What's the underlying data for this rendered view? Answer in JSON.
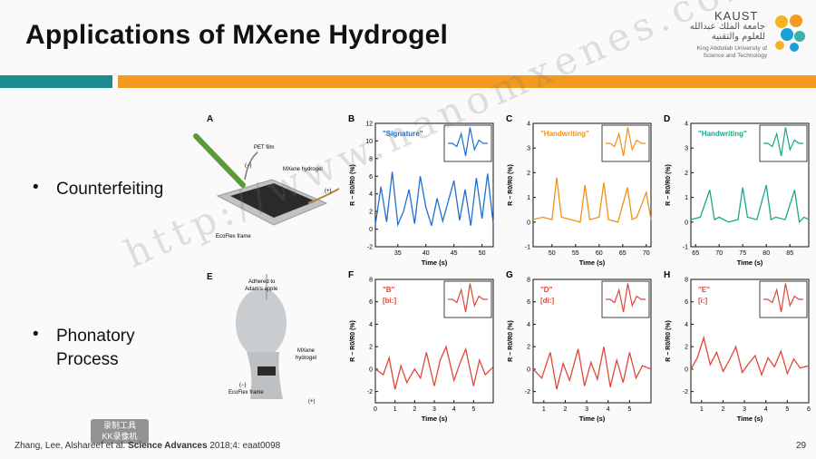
{
  "slide": {
    "title": "Applications of MXene Hydrogel",
    "page_number": "29",
    "citation_authors": "Zhang, Lee, Alshareef et al.",
    "citation_journal": "Science Advances",
    "citation_rest": "2018;4: eaat0098"
  },
  "logo": {
    "name": "KAUST",
    "arabic": "جامعة الملك عبدالله للعلوم والتقنية",
    "english": "King Abdullah University of Science and Technology"
  },
  "colors": {
    "teal": "#1c8a8f",
    "orange": "#f39a1f",
    "blue": "#1f6fd1",
    "orange_trace": "#f0901c",
    "green": "#1aa889",
    "red": "#e0463a"
  },
  "bullets": [
    {
      "symbol": "•",
      "text": "Counterfeiting"
    },
    {
      "symbol": "•",
      "text": "Phonatory"
    },
    {
      "symbol": "",
      "text": "Process"
    }
  ],
  "figure_A": {
    "letter": "A",
    "labels": [
      "PET film",
      "(−)",
      "MXene hydrogel",
      "(+)",
      "EcoFlex frame"
    ]
  },
  "figure_E": {
    "letter": "E",
    "labels": [
      "Adhered to",
      "Adam's apple",
      "MXene",
      "hydrogel",
      "(−)",
      "EcoFlex frame",
      "(+)"
    ]
  },
  "watermark": "http://www.nanomxenes.com",
  "recorder_badge": [
    "录制工具",
    "KK录像机"
  ],
  "chart_data": [
    {
      "panel": "B",
      "type": "line",
      "annotation": "\"Signature\"",
      "xlabel": "Time (s)",
      "ylabel": "R − R0/R0 (%)",
      "xlim": [
        31,
        52
      ],
      "ylim": [
        -2,
        12
      ],
      "xticks": [
        35,
        40,
        45,
        50
      ],
      "yticks": [
        -2,
        0,
        2,
        4,
        6,
        8,
        10,
        12
      ],
      "color": "#1f6fd1",
      "series": [
        {
          "x": [
            31,
            32,
            33,
            34,
            35,
            36,
            37,
            38,
            39,
            40,
            41,
            42,
            43,
            44,
            45,
            46,
            47,
            48,
            49,
            50,
            51,
            52
          ],
          "y": [
            0.5,
            4.8,
            0.8,
            6.5,
            0.5,
            2.0,
            4.5,
            0.6,
            6.0,
            2.5,
            0.4,
            3.5,
            0.9,
            3.2,
            5.5,
            1.0,
            4.5,
            0.4,
            5.8,
            1.2,
            6.3,
            0.6
          ]
        }
      ]
    },
    {
      "panel": "C",
      "type": "line",
      "annotation": "\"Handwriting\"",
      "xlabel": "Time (s)",
      "ylabel": "R − R0/R0 (%)",
      "xlim": [
        46,
        71
      ],
      "ylim": [
        -1,
        4
      ],
      "xticks": [
        50,
        55,
        60,
        65,
        70
      ],
      "yticks": [
        -1,
        0,
        1,
        2,
        3,
        4
      ],
      "color": "#f0901c",
      "series": [
        {
          "x": [
            46,
            48,
            50,
            51,
            52,
            54,
            56,
            57,
            58,
            60,
            61,
            62,
            64,
            66,
            67,
            68,
            70,
            71
          ],
          "y": [
            0.1,
            0.2,
            0.1,
            1.8,
            0.2,
            0.1,
            0.0,
            1.5,
            0.1,
            0.2,
            1.6,
            0.1,
            0.0,
            1.4,
            0.1,
            0.2,
            1.2,
            0.1
          ]
        }
      ]
    },
    {
      "panel": "D",
      "type": "line",
      "annotation": "\"Handwriting\"",
      "xlabel": "Time (s)",
      "ylabel": "R − R0/R0 (%)",
      "xlim": [
        64,
        89
      ],
      "ylim": [
        -1,
        4
      ],
      "xticks": [
        65,
        70,
        75,
        80,
        85
      ],
      "yticks": [
        -1,
        0,
        1,
        2,
        3,
        4
      ],
      "color": "#1aa889",
      "series": [
        {
          "x": [
            64,
            66,
            68,
            69,
            70,
            72,
            74,
            75,
            76,
            78,
            80,
            81,
            82,
            84,
            86,
            87,
            88,
            89
          ],
          "y": [
            0.1,
            0.2,
            1.3,
            0.1,
            0.2,
            0.0,
            0.1,
            1.4,
            0.2,
            0.1,
            1.5,
            0.1,
            0.2,
            0.1,
            1.3,
            0.0,
            0.2,
            0.1
          ]
        }
      ]
    },
    {
      "panel": "F",
      "type": "line",
      "annotation": "\"B\"",
      "annotation2": "[bi:]",
      "xlabel": "Time (s)",
      "ylabel": "R − R0/R0 (%)",
      "xlim": [
        0,
        6
      ],
      "ylim": [
        -3,
        8
      ],
      "xticks": [
        0,
        1,
        2,
        3,
        4,
        5
      ],
      "yticks": [
        -2,
        0,
        2,
        4,
        6,
        8
      ],
      "color": "#e0463a",
      "series": [
        {
          "x": [
            0,
            0.4,
            0.7,
            1.0,
            1.3,
            1.6,
            2.0,
            2.3,
            2.6,
            3.0,
            3.3,
            3.6,
            4.0,
            4.3,
            4.6,
            5.0,
            5.3,
            5.6,
            6.0
          ],
          "y": [
            0,
            -0.5,
            1.0,
            -1.8,
            0.3,
            -1.2,
            0.0,
            -0.8,
            1.5,
            -1.5,
            0.8,
            2.0,
            -1.0,
            0.5,
            1.8,
            -1.5,
            0.8,
            -0.5,
            0.2
          ]
        }
      ]
    },
    {
      "panel": "G",
      "type": "line",
      "annotation": "\"D\"",
      "annotation2": "[di:]",
      "xlabel": "Time (s)",
      "ylabel": "R − R0/R0 (%)",
      "xlim": [
        0.5,
        6
      ],
      "ylim": [
        -3,
        8
      ],
      "xticks": [
        1,
        2,
        3,
        4,
        5
      ],
      "yticks": [
        -2,
        0,
        2,
        4,
        6,
        8
      ],
      "color": "#e0463a",
      "series": [
        {
          "x": [
            0.5,
            0.9,
            1.3,
            1.6,
            1.9,
            2.2,
            2.6,
            2.9,
            3.2,
            3.5,
            3.8,
            4.1,
            4.4,
            4.7,
            5.0,
            5.3,
            5.6,
            6.0
          ],
          "y": [
            0,
            -0.8,
            1.5,
            -1.8,
            0.5,
            -1.0,
            1.8,
            -1.5,
            0.6,
            -0.9,
            2.0,
            -1.6,
            0.8,
            -1.2,
            1.5,
            -0.8,
            0.3,
            0.0
          ]
        }
      ]
    },
    {
      "panel": "H",
      "type": "line",
      "annotation": "\"E\"",
      "annotation2": "[i:]",
      "xlabel": "Time (s)",
      "ylabel": "R − R0/R0 (%)",
      "xlim": [
        0.5,
        6
      ],
      "ylim": [
        -3,
        8
      ],
      "xticks": [
        1,
        2,
        3,
        4,
        5,
        6
      ],
      "yticks": [
        -2,
        0,
        2,
        4,
        6,
        8
      ],
      "color": "#e0463a",
      "series": [
        {
          "x": [
            0.5,
            0.8,
            1.1,
            1.4,
            1.7,
            2.0,
            2.3,
            2.6,
            2.9,
            3.2,
            3.5,
            3.8,
            4.1,
            4.4,
            4.7,
            5.0,
            5.3,
            5.6,
            6.0
          ],
          "y": [
            0,
            1.0,
            2.8,
            0.4,
            1.5,
            -0.2,
            0.8,
            2.0,
            -0.3,
            0.5,
            1.2,
            -0.5,
            1.0,
            0.2,
            1.6,
            -0.4,
            0.9,
            0.1,
            0.3
          ]
        }
      ]
    }
  ]
}
